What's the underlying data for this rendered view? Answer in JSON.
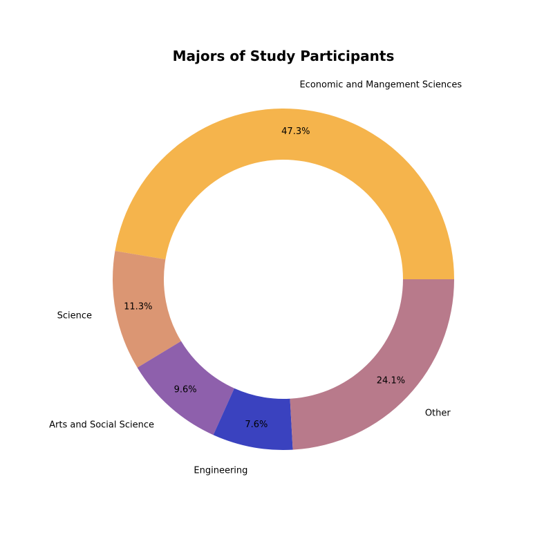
{
  "chart_data": {
    "type": "pie",
    "variant": "donut",
    "title": "Majors of Study Participants",
    "start_angle_deg": 0,
    "direction": "counterclockwise",
    "slices": [
      {
        "label": "Economic and Mangement Sciences",
        "value": 47.3,
        "pct_label": "47.3%",
        "color": "#F5B44C"
      },
      {
        "label": "Science",
        "value": 11.3,
        "pct_label": "11.3%",
        "color": "#DB9673"
      },
      {
        "label": "Arts and Social Science",
        "value": 9.6,
        "pct_label": "9.6%",
        "color": "#8E60AC"
      },
      {
        "label": "Engineering",
        "value": 7.6,
        "pct_label": "7.6%",
        "color": "#3A42BF"
      },
      {
        "label": "Other",
        "value": 24.1,
        "pct_label": "24.1%",
        "color": "#B87A8B"
      }
    ]
  }
}
